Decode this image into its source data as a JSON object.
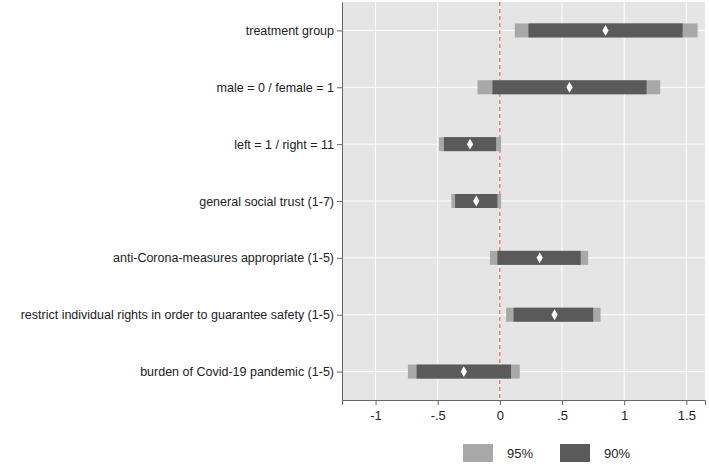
{
  "chart_data": {
    "type": "coefficient",
    "orientation": "horizontal",
    "grid": true,
    "legend": "bottom",
    "categories": [
      "treatment group",
      "male = 0 / female  = 1",
      "left = 1 / right = 11",
      "general social trust (1-7)",
      "anti-Corona-measures appropriate (1-5)",
      "restrict individual rights in order to guarantee safety (1-5)",
      "burden of Covid-19 pandemic (1-5)"
    ],
    "values": [
      0.85,
      0.56,
      -0.24,
      -0.19,
      0.32,
      0.44,
      -0.29
    ],
    "color": "#ffffff",
    "marker": "diamond",
    "series": [
      {
        "name": "95%",
        "color": "#a8a8a8",
        "lower": [
          0.12,
          -0.18,
          -0.49,
          -0.39,
          -0.08,
          0.05,
          -0.74
        ],
        "upper": [
          1.59,
          1.29,
          0.01,
          0.01,
          0.71,
          0.81,
          0.16
        ]
      },
      {
        "name": "90%",
        "color": "#5a5a5a",
        "lower": [
          0.23,
          -0.06,
          -0.45,
          -0.36,
          -0.02,
          0.11,
          -0.67
        ],
        "upper": [
          1.47,
          1.18,
          -0.03,
          -0.02,
          0.65,
          0.75,
          0.09
        ]
      }
    ],
    "xlim": [
      -1.27,
      1.65
    ],
    "xticks": [
      -1,
      {
        "value": -0.5,
        "label": "-.5"
      },
      0,
      {
        "value": 0.5,
        "label": ".5"
      },
      1,
      1.5
    ]
  }
}
